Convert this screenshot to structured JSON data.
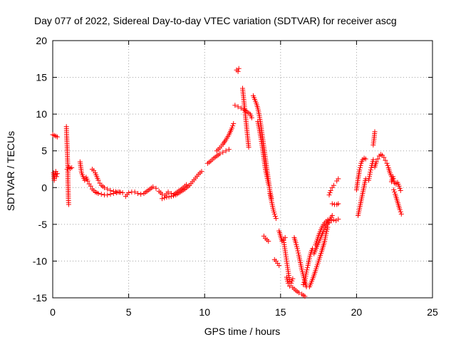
{
  "chart_data": {
    "type": "scatter",
    "title": "Day 077 of 2022, Sidereal Day-to-day VTEC variation (SDTVAR) for receiver ascg",
    "xlabel": "GPS time / hours",
    "ylabel": "SDTVAR / TECUs",
    "xlim": [
      0,
      25
    ],
    "ylim": [
      -15,
      20
    ],
    "xticks": [
      "0",
      "5",
      "10",
      "15",
      "20",
      "25"
    ],
    "yticks": [
      "20",
      "15",
      "10",
      "5",
      "0",
      "-5",
      "-10",
      "-15"
    ],
    "grid": true,
    "marker": "+",
    "color": "#ff0000",
    "series": [
      {
        "name": "SDTVAR",
        "segments": [
          [
            [
              0.0,
              7.2
            ],
            [
              0.1,
              7.1
            ],
            [
              0.2,
              7.0
            ],
            [
              0.3,
              6.9
            ]
          ],
          [
            [
              0.05,
              2.0
            ],
            [
              0.1,
              1.0
            ],
            [
              0.15,
              1.8
            ],
            [
              0.2,
              2.2
            ],
            [
              0.25,
              1.5
            ],
            [
              0.3,
              1.9
            ]
          ],
          [
            [
              0.9,
              8.3
            ],
            [
              0.92,
              7.0
            ],
            [
              0.95,
              5.5
            ],
            [
              0.97,
              4.0
            ],
            [
              1.0,
              2.5
            ],
            [
              1.0,
              1.0
            ],
            [
              1.02,
              -0.5
            ],
            [
              1.03,
              -1.5
            ],
            [
              1.05,
              -2.3
            ]
          ],
          [
            [
              0.95,
              2.5
            ],
            [
              1.05,
              2.8
            ],
            [
              1.15,
              2.6
            ],
            [
              1.25,
              2.7
            ]
          ],
          [
            [
              1.8,
              3.5
            ],
            [
              1.9,
              2.0
            ],
            [
              2.0,
              1.5
            ],
            [
              2.1,
              1.0
            ],
            [
              2.2,
              1.4
            ],
            [
              2.3,
              0.9
            ],
            [
              2.4,
              0.5
            ],
            [
              2.5,
              0.2
            ],
            [
              2.6,
              -0.2
            ],
            [
              2.7,
              -0.4
            ],
            [
              2.8,
              -0.6
            ],
            [
              2.9,
              -0.7
            ],
            [
              3.0,
              -0.8
            ],
            [
              3.2,
              -0.9
            ],
            [
              3.4,
              -1.0
            ],
            [
              3.6,
              -1.0
            ],
            [
              3.8,
              -0.9
            ],
            [
              4.0,
              -0.8
            ],
            [
              4.2,
              -0.7
            ],
            [
              4.4,
              -0.6
            ]
          ],
          [
            [
              2.6,
              2.5
            ],
            [
              2.7,
              2.3
            ],
            [
              2.8,
              2.0
            ],
            [
              2.9,
              1.5
            ],
            [
              3.0,
              1.0
            ],
            [
              3.1,
              0.6
            ],
            [
              3.2,
              0.3
            ],
            [
              3.4,
              0.0
            ],
            [
              3.6,
              -0.2
            ],
            [
              3.8,
              -0.4
            ],
            [
              4.0,
              -0.5
            ],
            [
              4.3,
              -0.6
            ],
            [
              4.6,
              -0.7
            ]
          ],
          [
            [
              4.8,
              -1.2
            ],
            [
              5.0,
              -0.7
            ],
            [
              5.2,
              -0.6
            ],
            [
              5.4,
              -0.6
            ],
            [
              5.6,
              -0.8
            ],
            [
              5.8,
              -0.9
            ],
            [
              6.0,
              -0.8
            ],
            [
              6.2,
              -0.5
            ],
            [
              6.4,
              -0.2
            ],
            [
              6.6,
              0.1
            ],
            [
              6.8,
              -0.1
            ]
          ],
          [
            [
              7.0,
              -0.5
            ],
            [
              7.2,
              -0.9
            ],
            [
              7.4,
              -1.1
            ],
            [
              7.6,
              -0.6
            ],
            [
              7.8,
              -0.8
            ],
            [
              8.0,
              -0.9
            ],
            [
              8.2,
              -0.6
            ],
            [
              8.4,
              -0.3
            ],
            [
              8.6,
              0.0
            ],
            [
              8.8,
              0.4
            ]
          ],
          [
            [
              7.2,
              -1.5
            ],
            [
              7.5,
              -1.3
            ],
            [
              7.8,
              -1.2
            ],
            [
              8.1,
              -1.0
            ],
            [
              8.4,
              -0.6
            ],
            [
              8.7,
              -0.2
            ],
            [
              9.0,
              0.3
            ],
            [
              9.2,
              0.8
            ],
            [
              9.4,
              1.3
            ],
            [
              9.6,
              1.8
            ],
            [
              9.8,
              2.2
            ]
          ],
          [
            [
              10.2,
              3.3
            ],
            [
              10.4,
              3.6
            ],
            [
              10.6,
              4.0
            ],
            [
              10.8,
              4.3
            ],
            [
              11.0,
              4.6
            ],
            [
              11.2,
              4.8
            ],
            [
              11.4,
              5.0
            ],
            [
              11.6,
              5.2
            ]
          ],
          [
            [
              10.8,
              5.0
            ],
            [
              11.0,
              5.4
            ],
            [
              11.2,
              5.9
            ],
            [
              11.4,
              6.5
            ],
            [
              11.6,
              7.2
            ],
            [
              11.8,
              8.1
            ],
            [
              11.9,
              8.7
            ]
          ],
          [
            [
              12.1,
              16.0
            ],
            [
              12.2,
              15.8
            ],
            [
              12.25,
              16.2
            ]
          ],
          [
            [
              12.5,
              13.5
            ],
            [
              12.55,
              12.5
            ],
            [
              12.6,
              11.5
            ],
            [
              12.65,
              10.5
            ],
            [
              12.7,
              9.5
            ],
            [
              12.75,
              8.5
            ],
            [
              12.8,
              7.5
            ],
            [
              12.85,
              6.5
            ],
            [
              12.9,
              5.5
            ]
          ],
          [
            [
              12.0,
              11.2
            ],
            [
              12.2,
              11.0
            ],
            [
              12.4,
              10.8
            ],
            [
              12.6,
              10.6
            ],
            [
              12.8,
              10.3
            ],
            [
              13.0,
              10.0
            ],
            [
              13.1,
              9.5
            ]
          ],
          [
            [
              13.2,
              12.5
            ],
            [
              13.3,
              12.0
            ],
            [
              13.4,
              11.5
            ],
            [
              13.5,
              10.8
            ],
            [
              13.6,
              9.8
            ],
            [
              13.7,
              8.5
            ],
            [
              13.8,
              7.0
            ],
            [
              13.9,
              5.5
            ],
            [
              14.0,
              4.0
            ],
            [
              14.1,
              2.5
            ],
            [
              14.2,
              1.0
            ],
            [
              14.3,
              -0.5
            ],
            [
              14.4,
              -1.5
            ]
          ],
          [
            [
              13.5,
              9.0
            ],
            [
              13.6,
              8.0
            ],
            [
              13.7,
              6.8
            ],
            [
              13.8,
              5.5
            ],
            [
              13.9,
              4.0
            ],
            [
              14.0,
              2.5
            ],
            [
              14.1,
              1.5
            ],
            [
              14.2,
              0.5
            ]
          ],
          [
            [
              14.3,
              -0.8
            ],
            [
              14.4,
              -1.8
            ],
            [
              14.5,
              -2.8
            ],
            [
              14.6,
              -3.6
            ],
            [
              14.7,
              -4.2
            ]
          ],
          [
            [
              13.9,
              -6.6
            ],
            [
              14.0,
              -6.9
            ],
            [
              14.1,
              -7.1
            ],
            [
              14.2,
              -7.3
            ]
          ],
          [
            [
              14.6,
              -9.8
            ],
            [
              14.7,
              -10.0
            ],
            [
              14.8,
              -10.3
            ],
            [
              14.9,
              -10.6
            ]
          ],
          [
            [
              14.9,
              -5.9
            ],
            [
              15.0,
              -6.6
            ],
            [
              15.1,
              -7.3
            ],
            [
              15.2,
              -7.0
            ],
            [
              15.3,
              -6.8
            ]
          ],
          [
            [
              15.2,
              -7.2
            ],
            [
              15.3,
              -8.6
            ],
            [
              15.4,
              -10.0
            ],
            [
              15.5,
              -11.4
            ],
            [
              15.6,
              -12.8
            ],
            [
              15.7,
              -13.0
            ],
            [
              15.8,
              -12.4
            ]
          ],
          [
            [
              15.4,
              -12.2
            ],
            [
              15.5,
              -13.0
            ],
            [
              15.6,
              -13.4
            ],
            [
              15.8,
              -13.6
            ],
            [
              16.0,
              -14.0
            ],
            [
              16.2,
              -14.3
            ],
            [
              16.4,
              -14.5
            ],
            [
              16.6,
              -14.8
            ]
          ],
          [
            [
              15.9,
              -6.8
            ],
            [
              16.0,
              -7.5
            ],
            [
              16.1,
              -8.3
            ],
            [
              16.2,
              -9.2
            ],
            [
              16.3,
              -10.2
            ],
            [
              16.4,
              -11.2
            ],
            [
              16.5,
              -12.0
            ],
            [
              16.6,
              -12.8
            ],
            [
              16.7,
              -13.5
            ]
          ],
          [
            [
              16.5,
              -13.2
            ],
            [
              16.6,
              -12.6
            ],
            [
              16.7,
              -11.5
            ],
            [
              16.8,
              -10.6
            ],
            [
              16.9,
              -9.6
            ],
            [
              17.0,
              -8.8
            ],
            [
              17.1,
              -8.3
            ]
          ],
          [
            [
              16.9,
              -13.5
            ],
            [
              17.1,
              -12.5
            ],
            [
              17.3,
              -11.3
            ],
            [
              17.5,
              -10.0
            ],
            [
              17.7,
              -8.7
            ],
            [
              17.9,
              -7.3
            ],
            [
              18.0,
              -6.2
            ],
            [
              18.1,
              -5.4
            ]
          ],
          [
            [
              17.2,
              -9.0
            ],
            [
              17.4,
              -8.0
            ],
            [
              17.6,
              -7.0
            ],
            [
              17.8,
              -6.0
            ],
            [
              18.0,
              -5.2
            ],
            [
              18.2,
              -4.5
            ],
            [
              18.4,
              -3.8
            ]
          ],
          [
            [
              17.3,
              -7.8
            ],
            [
              17.5,
              -6.5
            ],
            [
              17.7,
              -5.5
            ],
            [
              17.9,
              -4.8
            ],
            [
              18.1,
              -4.4
            ]
          ],
          [
            [
              18.2,
              -1.0
            ],
            [
              18.3,
              -0.4
            ],
            [
              18.4,
              0.0
            ],
            [
              18.5,
              0.3
            ]
          ],
          [
            [
              18.4,
              -2.2
            ],
            [
              18.55,
              -2.3
            ],
            [
              18.7,
              -2.3
            ],
            [
              18.8,
              -2.2
            ]
          ],
          [
            [
              18.2,
              -4.8
            ],
            [
              18.35,
              -4.5
            ],
            [
              18.5,
              -4.4
            ],
            [
              18.65,
              -4.5
            ],
            [
              18.8,
              -4.3
            ]
          ],
          [
            [
              18.7,
              0.9
            ],
            [
              18.8,
              1.2
            ]
          ],
          [
            [
              20.0,
              -0.3
            ],
            [
              20.1,
              1.2
            ],
            [
              20.2,
              2.4
            ],
            [
              20.3,
              3.3
            ],
            [
              20.4,
              3.8
            ],
            [
              20.5,
              4.0
            ],
            [
              20.6,
              3.9
            ]
          ],
          [
            [
              20.1,
              -3.8
            ],
            [
              20.2,
              -2.8
            ],
            [
              20.3,
              -1.8
            ],
            [
              20.4,
              -0.8
            ],
            [
              20.5,
              0.2
            ],
            [
              20.6,
              1.2
            ]
          ],
          [
            [
              20.8,
              1.0
            ],
            [
              20.9,
              2.1
            ],
            [
              21.0,
              3.0
            ],
            [
              21.1,
              3.8
            ]
          ],
          [
            [
              21.1,
              5.8
            ],
            [
              21.15,
              6.6
            ],
            [
              21.2,
              7.6
            ]
          ],
          [
            [
              21.2,
              2.8
            ],
            [
              21.3,
              3.5
            ],
            [
              21.4,
              3.9
            ],
            [
              21.5,
              4.3
            ],
            [
              21.6,
              4.5
            ],
            [
              21.7,
              4.4
            ],
            [
              21.8,
              4.1
            ],
            [
              21.9,
              3.7
            ],
            [
              22.0,
              3.3
            ],
            [
              22.1,
              2.7
            ],
            [
              22.2,
              2.0
            ],
            [
              22.3,
              1.5
            ]
          ],
          [
            [
              22.3,
              0.8
            ],
            [
              22.4,
              1.5
            ],
            [
              22.5,
              0.6
            ],
            [
              22.6,
              0.5
            ],
            [
              22.7,
              0.7
            ],
            [
              22.8,
              0.2
            ],
            [
              22.9,
              -0.4
            ]
          ],
          [
            [
              22.45,
              -0.3
            ],
            [
              22.55,
              -0.9
            ],
            [
              22.65,
              -1.6
            ],
            [
              22.75,
              -2.3
            ],
            [
              22.85,
              -3.0
            ],
            [
              22.95,
              -3.6
            ]
          ]
        ]
      }
    ]
  }
}
